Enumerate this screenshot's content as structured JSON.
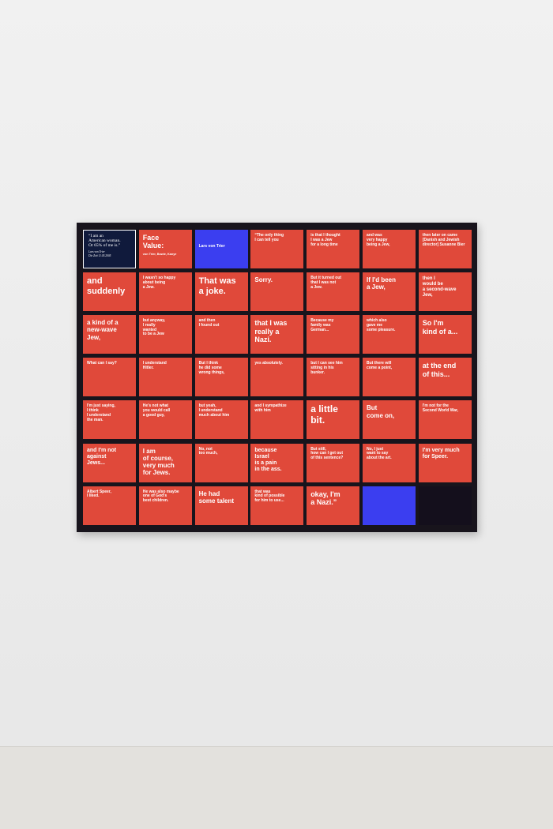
{
  "tile_color": "#e0493a",
  "frame_color": "#18141c",
  "tiles": [
    [
      {
        "lines": [
          "“I am an",
          "American woman.",
          "Or 65% of me is.”"
        ],
        "sub": [
          "Lars von Trier",
          "Die Zeit 11.05.2005"
        ],
        "color": "#101a3c"
      },
      {
        "lines": [
          "Face",
          "Value:"
        ],
        "sub": [
          "von Trier, Bowie, Kanye"
        ]
      },
      {
        "lines": [
          "Lars von Trier"
        ],
        "color": "#3b3ef0"
      },
      {
        "lines": [
          "“The only thing",
          "I can tell you"
        ]
      },
      {
        "lines": [
          "is that I thought",
          "I was a Jew",
          "for a long time"
        ]
      },
      {
        "lines": [
          "and was",
          "very happy",
          "being a Jew,"
        ]
      },
      {
        "lines": [
          "then later on came",
          "[Danish and Jewish",
          "director] Susanne Bier"
        ]
      }
    ],
    [
      {
        "lines": [
          "and",
          "suddenly"
        ]
      },
      {
        "lines": [
          "I wasn't so happy",
          "about being",
          "a Jew."
        ]
      },
      {
        "lines": [
          "That was",
          "a joke."
        ]
      },
      {
        "lines": [
          "Sorry."
        ]
      },
      {
        "lines": [
          "But it turned out",
          "that I was not",
          "a Jew."
        ]
      },
      {
        "lines": [
          "If I'd been",
          "a Jew,"
        ]
      },
      {
        "lines": [
          "then I",
          "would be",
          "a second-wave",
          "Jew,"
        ]
      }
    ],
    [
      {
        "lines": [
          "a kind of a",
          "new-wave",
          "Jew,"
        ]
      },
      {
        "lines": [
          "but anyway,",
          "I really",
          "wanted",
          "to be a Jew"
        ]
      },
      {
        "lines": [
          "and then",
          "I found out"
        ]
      },
      {
        "lines": [
          "that I was",
          "really a",
          "Nazi."
        ]
      },
      {
        "lines": [
          "Because my",
          "family was",
          "German..."
        ]
      },
      {
        "lines": [
          "which also",
          "gave me",
          "some pleasure."
        ]
      },
      {
        "lines": [
          "So I'm",
          "kind of a..."
        ]
      }
    ],
    [
      {
        "lines": [
          "What can I say?"
        ]
      },
      {
        "lines": [
          "I understand",
          "Hitler."
        ]
      },
      {
        "lines": [
          "But I think",
          "he did some",
          "wrong things,"
        ]
      },
      {
        "lines": [
          "yes absolutely."
        ]
      },
      {
        "lines": [
          "but I can see him",
          "sitting in his",
          "bunker."
        ]
      },
      {
        "lines": [
          "But there will",
          "come a point,"
        ]
      },
      {
        "lines": [
          "at the end",
          "of this..."
        ]
      }
    ],
    [
      {
        "lines": [
          "I'm just saying,",
          "I think",
          "I understand",
          "the man."
        ]
      },
      {
        "lines": [
          "He's not what",
          "you would call",
          "a good guy,"
        ]
      },
      {
        "lines": [
          "but yeah,",
          "I understand",
          "much about him"
        ]
      },
      {
        "lines": [
          "and I sympathize",
          "with him"
        ]
      },
      {
        "lines": [
          "a little",
          "bit."
        ]
      },
      {
        "lines": [
          "But",
          "come on,"
        ]
      },
      {
        "lines": [
          "I'm not for the",
          "Second World War,"
        ]
      }
    ],
    [
      {
        "lines": [
          "and I'm not",
          "against",
          "Jews..."
        ]
      },
      {
        "lines": [
          "I am",
          "of course,",
          "very much",
          "for Jews."
        ]
      },
      {
        "lines": [
          "No, not",
          "too much,"
        ]
      },
      {
        "lines": [
          "because",
          "Israel",
          "is a pain",
          "in the ass."
        ]
      },
      {
        "lines": [
          "But still,",
          "how can I get out",
          "of this sentence?"
        ]
      },
      {
        "lines": [
          "No, I just",
          "want to say",
          "about the art."
        ]
      },
      {
        "lines": [
          "I'm very much",
          "for Speer."
        ]
      }
    ],
    [
      {
        "lines": [
          "Albert Speer,",
          "I liked."
        ]
      },
      {
        "lines": [
          "He was also maybe",
          "one of God's",
          "best children."
        ]
      },
      {
        "lines": [
          "He had",
          "some talent"
        ]
      },
      {
        "lines": [
          "that was",
          "kind of possible",
          "for him to use..."
        ]
      },
      {
        "lines": [
          "okay, I'm",
          "a Nazi.”"
        ]
      },
      {
        "color": "#3b3ef0"
      },
      {
        "color": "#140f1c"
      }
    ]
  ]
}
